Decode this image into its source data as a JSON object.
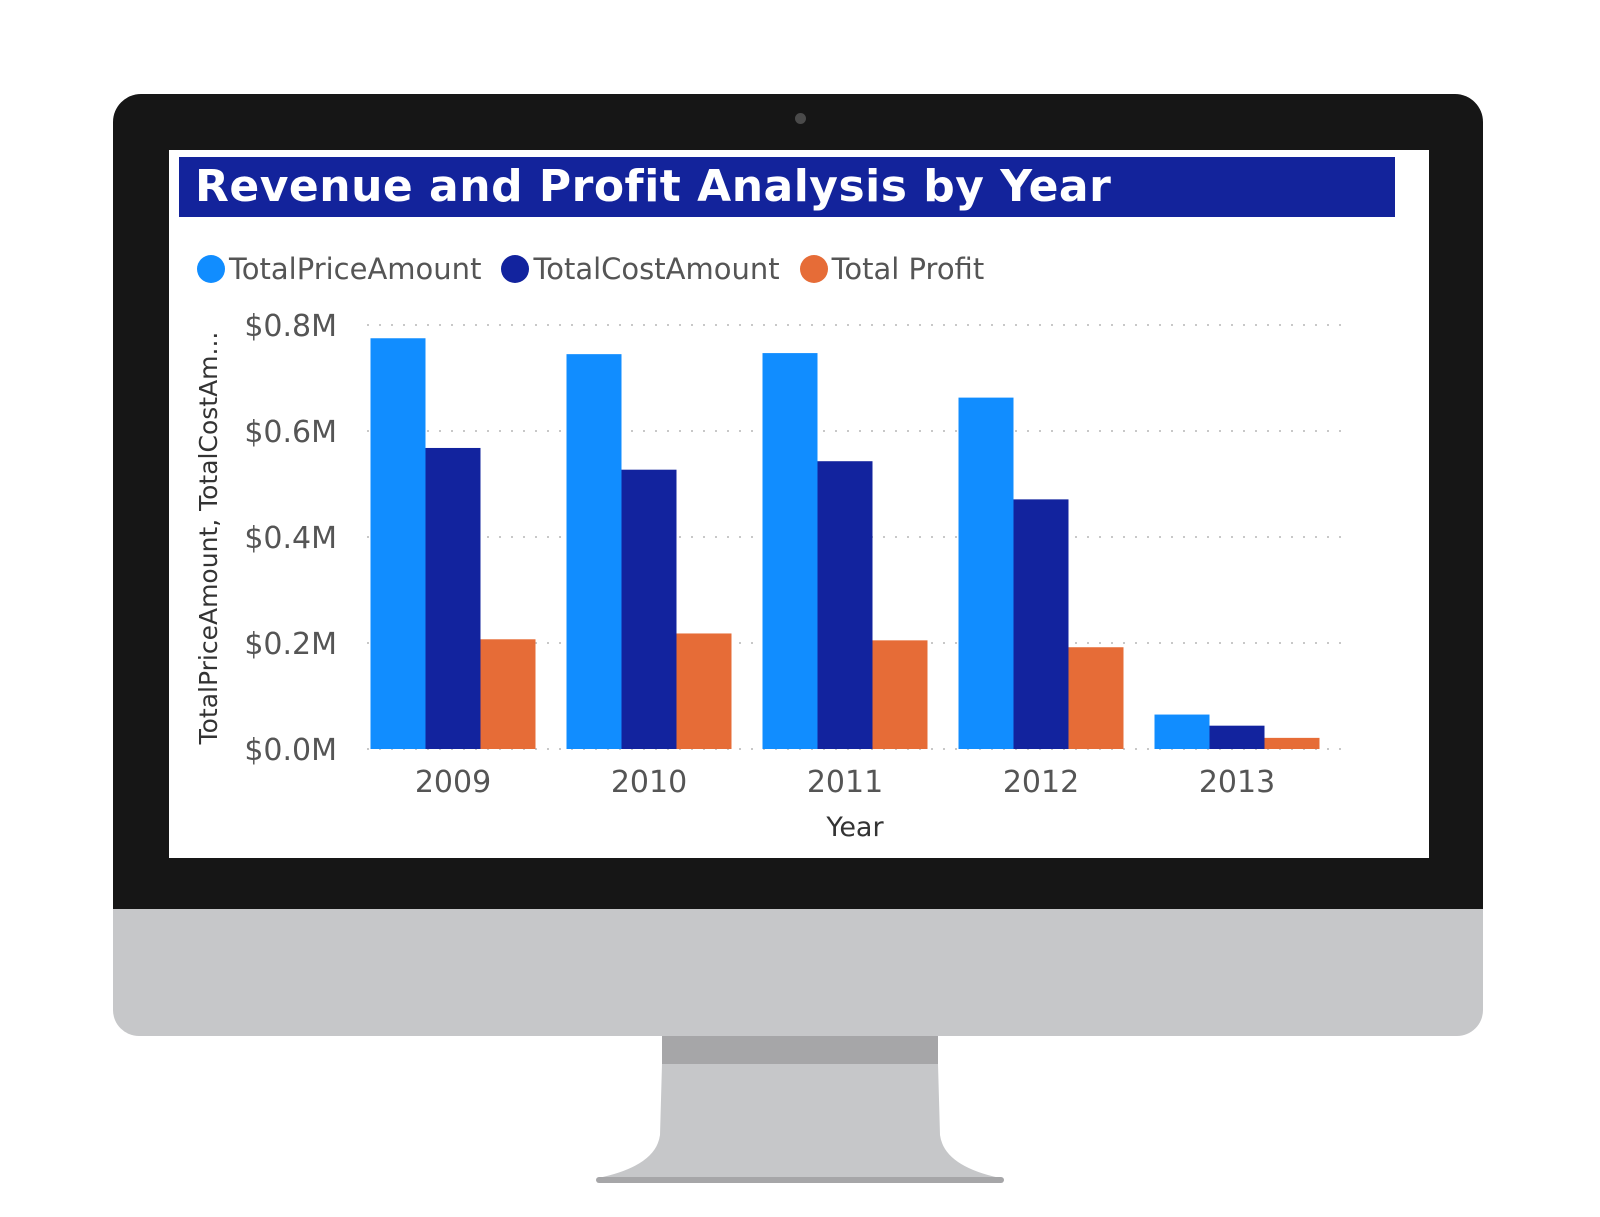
{
  "colors": {
    "title_background": "#13239b",
    "title_text": "#ffffff",
    "price": "#118dff",
    "cost": "#12239e",
    "profit": "#e66c37",
    "bezel": "#161616",
    "chin": "#c6c7c9"
  },
  "chart_data": {
    "type": "bar",
    "title": "Revenue and Profit Analysis by Year",
    "xlabel": "Year",
    "ylabel": "TotalPriceAmount, TotalCostAm...",
    "categories": [
      "2009",
      "2010",
      "2011",
      "2012",
      "2013"
    ],
    "series": [
      {
        "name": "TotalPriceAmount",
        "color": "#118dff",
        "values": [
          0.775,
          0.745,
          0.747,
          0.663,
          0.065
        ]
      },
      {
        "name": "TotalCostAmount",
        "color": "#12239e",
        "values": [
          0.568,
          0.527,
          0.543,
          0.471,
          0.044
        ]
      },
      {
        "name": "Total Profit",
        "color": "#e66c37",
        "values": [
          0.207,
          0.218,
          0.205,
          0.192,
          0.021
        ]
      }
    ],
    "ylim": [
      0,
      0.8
    ],
    "yticks": [
      0,
      0.2,
      0.4,
      0.6,
      0.8
    ],
    "ytick_labels": [
      "$0.0M",
      "$0.2M",
      "$0.4M",
      "$0.6M",
      "$0.8M"
    ],
    "grid": true,
    "legend_position": "top-left"
  }
}
